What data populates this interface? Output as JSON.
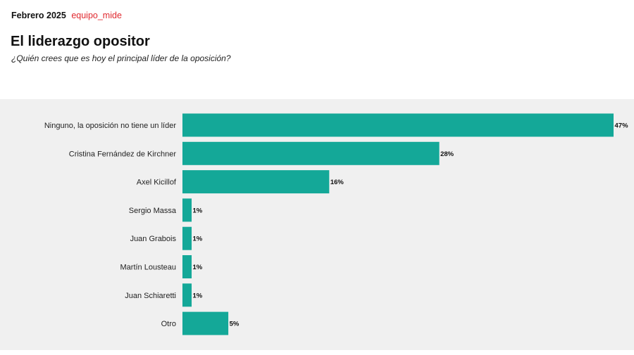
{
  "header": {
    "date": "Febrero 2025",
    "source": "equipo_mide"
  },
  "chart_data": {
    "type": "bar",
    "orientation": "horizontal",
    "title": "El liderazgo opositor",
    "subtitle": "¿Quién crees que es hoy el principal líder de la oposición?",
    "categories": [
      "Ninguno, la oposición no tiene un líder",
      "Cristina Fernández de Kirchner",
      "Axel Kicillof",
      "Sergio Massa",
      "Juan Grabois",
      "Martín Lousteau",
      "Juan Schiaretti",
      "Otro"
    ],
    "values": [
      47,
      28,
      16,
      1,
      1,
      1,
      1,
      5
    ],
    "value_labels": [
      "47%",
      "28%",
      "16%",
      "1%",
      "1%",
      "1%",
      "1%",
      "5%"
    ],
    "xlim": [
      0,
      47
    ],
    "grid": false,
    "bar_color": "#14a898",
    "background_color": "#f0f0f0"
  }
}
